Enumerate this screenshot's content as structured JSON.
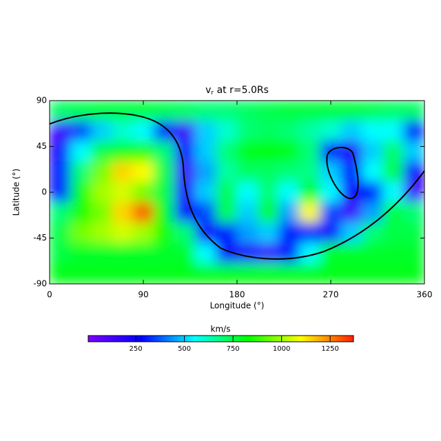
{
  "chart_data": {
    "type": "heatmap",
    "title": "v",
    "title_sub": "r",
    "title_rest": " at r=5.0Rs",
    "x_label": "Longitude (°)",
    "y_label": "Latitude (°)",
    "colorbar_label": "km/s",
    "x": [
      10,
      30,
      50,
      70,
      90,
      110,
      130,
      150,
      170,
      190,
      210,
      230,
      250,
      270,
      290,
      310,
      330,
      350
    ],
    "y": [
      80,
      60,
      40,
      20,
      0,
      -20,
      -40,
      -60,
      -80
    ],
    "values": [
      [
        720,
        740,
        760,
        760,
        760,
        740,
        720,
        700,
        700,
        720,
        740,
        760,
        760,
        760,
        760,
        740,
        720,
        720
      ],
      [
        150,
        350,
        500,
        600,
        550,
        300,
        150,
        500,
        600,
        700,
        720,
        700,
        650,
        600,
        500,
        550,
        550,
        300
      ],
      [
        250,
        550,
        750,
        800,
        850,
        700,
        250,
        500,
        700,
        800,
        820,
        800,
        700,
        300,
        200,
        500,
        720,
        500
      ],
      [
        300,
        700,
        950,
        1150,
        1100,
        750,
        150,
        450,
        650,
        720,
        720,
        700,
        680,
        500,
        300,
        550,
        750,
        250
      ],
      [
        300,
        800,
        1000,
        1050,
        950,
        750,
        200,
        500,
        750,
        550,
        700,
        550,
        800,
        550,
        250,
        300,
        550,
        150
      ],
      [
        700,
        850,
        950,
        1150,
        1300,
        800,
        250,
        350,
        750,
        500,
        800,
        450,
        1100,
        350,
        150,
        450,
        750,
        700
      ],
      [
        750,
        950,
        1000,
        1050,
        1000,
        850,
        700,
        250,
        300,
        450,
        500,
        300,
        300,
        250,
        500,
        700,
        750,
        750
      ],
      [
        750,
        780,
        780,
        780,
        780,
        780,
        780,
        550,
        250,
        200,
        150,
        300,
        550,
        780,
        780,
        780,
        780,
        780
      ],
      [
        800,
        800,
        800,
        800,
        800,
        800,
        800,
        800,
        800,
        800,
        800,
        800,
        800,
        800,
        800,
        800,
        800,
        800
      ]
    ],
    "xlim": [
      0,
      360
    ],
    "ylim": [
      -90,
      90
    ],
    "xticks": [
      0,
      90,
      180,
      270,
      360
    ],
    "yticks": [
      -90,
      -45,
      0,
      45,
      90
    ],
    "clim": [
      5,
      1370
    ],
    "cticks": [
      250,
      500,
      750,
      1000,
      1250
    ],
    "colormap": [
      "#7f00ff",
      "#0000ff",
      "#00ffff",
      "#00ff00",
      "#ffff00",
      "#ff2000"
    ]
  }
}
